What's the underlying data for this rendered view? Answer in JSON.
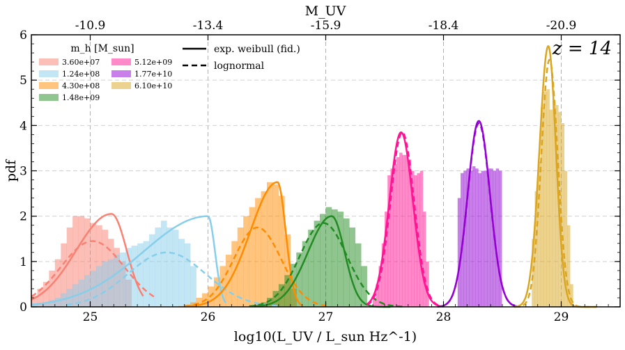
{
  "chart_data": {
    "type": "histogram",
    "title": "",
    "annotation": "z = 14",
    "xlabel": "log10(L_UV / L_sun Hz^-1)",
    "ylabel": "pdf",
    "top_xlabel": "M_UV",
    "xlim": [
      24.5,
      29.5
    ],
    "ylim": [
      0,
      6
    ],
    "xticks": [
      25,
      26,
      27,
      28,
      29
    ],
    "xtick_labels": [
      "25",
      "26",
      "27",
      "28",
      "29"
    ],
    "yticks": [
      0,
      1,
      2,
      3,
      4,
      5,
      6
    ],
    "ytick_labels": [
      "0",
      "1",
      "2",
      "3",
      "4",
      "5",
      "6"
    ],
    "top_xticks": [
      25,
      26,
      27,
      28,
      29
    ],
    "top_xtick_labels": [
      "-10.9",
      "-13.4",
      "-15.9",
      "-18.4",
      "-20.9"
    ],
    "grid": true,
    "legend_title": "m_h [M_sun]",
    "style_legend": [
      {
        "label": "exp. weibull (fid.)",
        "style": "solid"
      },
      {
        "label": "lognormal",
        "style": "dashed"
      }
    ],
    "series": [
      {
        "name": "3.60e+07",
        "color": "#fa8072",
        "bin_width": 0.05,
        "hist_x0": 24.45,
        "hist": [
          0.15,
          0.25,
          0.4,
          0.55,
          0.8,
          1.05,
          1.4,
          1.75,
          2.0,
          2.0,
          1.95,
          1.85,
          1.8,
          1.7,
          1.5,
          1.3,
          1.0,
          0.6
        ],
        "weibull": {
          "mode": 25.18,
          "peak": 2.05,
          "lw": 0.3,
          "rw": 0.13,
          "xmin": 24.5,
          "xmax": 25.45
        },
        "lognormal": {
          "mu": 25.02,
          "peak": 1.45,
          "lw": 0.27,
          "rw": 0.27,
          "xmin": 24.5,
          "xmax": 25.55
        }
      },
      {
        "name": "1.24e+08",
        "color": "#87ceeb",
        "bin_width": 0.05,
        "hist_x0": 24.5,
        "hist": [
          0.05,
          0.05,
          0.1,
          0.15,
          0.2,
          0.3,
          0.4,
          0.5,
          0.6,
          0.7,
          0.8,
          0.9,
          1.0,
          1.05,
          1.15,
          1.2,
          1.3,
          1.35,
          1.4,
          1.45,
          1.6,
          1.75,
          1.9,
          1.75,
          1.7,
          1.5,
          1.4,
          0.9
        ],
        "weibull": {
          "mode": 26.0,
          "peak": 2.0,
          "lw": 0.55,
          "rw": 0.06,
          "xmin": 24.5,
          "xmax": 26.15
        },
        "lognormal": {
          "mu": 25.65,
          "peak": 1.2,
          "lw": 0.33,
          "rw": 0.33,
          "xmin": 24.8,
          "xmax": 26.6
        }
      },
      {
        "name": "4.30e+08",
        "color": "#ff8c00",
        "bin_width": 0.05,
        "hist_x0": 25.75,
        "hist": [
          0.02,
          0.05,
          0.1,
          0.2,
          0.3,
          0.45,
          0.65,
          0.9,
          1.15,
          1.45,
          1.75,
          2.0,
          2.2,
          2.4,
          2.55,
          2.75,
          2.7,
          2.45,
          1.6,
          0.4
        ],
        "weibull": {
          "mode": 26.59,
          "peak": 2.75,
          "lw": 0.23,
          "rw": 0.07,
          "xmin": 25.8,
          "xmax": 26.8
        },
        "lognormal": {
          "mu": 26.42,
          "peak": 1.75,
          "lw": 0.2,
          "rw": 0.2,
          "xmin": 25.8,
          "xmax": 27.0
        }
      },
      {
        "name": "1.48e+09",
        "color": "#228b22",
        "bin_width": 0.05,
        "hist_x0": 26.35,
        "hist": [
          0.02,
          0.05,
          0.1,
          0.2,
          0.35,
          0.5,
          0.7,
          0.95,
          1.2,
          1.45,
          1.7,
          1.9,
          2.05,
          2.2,
          2.15,
          2.1,
          1.95,
          1.75,
          1.4,
          0.9
        ],
        "weibull": {
          "mode": 27.05,
          "peak": 2.0,
          "lw": 0.2,
          "rw": 0.11,
          "xmin": 26.4,
          "xmax": 27.55
        },
        "lognormal": {
          "mu": 26.98,
          "peak": 1.85,
          "lw": 0.2,
          "rw": 0.2,
          "xmin": 26.35,
          "xmax": 27.65
        }
      },
      {
        "name": "5.12e+09",
        "color": "#ff1493",
        "bin_width": 0.025,
        "hist_x0": 27.4,
        "hist": [
          0.2,
          0.5,
          0.9,
          1.4,
          2.1,
          2.9,
          3.05,
          3.15,
          3.3,
          3.4,
          3.35,
          3.35,
          3.25,
          3.0,
          2.9,
          2.95,
          3.0,
          2.1,
          1.0
        ],
        "weibull": {
          "mode": 27.64,
          "peak": 3.85,
          "lw": 0.1,
          "rw": 0.1,
          "xmin": 27.35,
          "xmax": 28.0
        },
        "lognormal": {
          "mu": 27.65,
          "peak": 3.85,
          "lw": 0.1,
          "rw": 0.1,
          "xmin": 27.35,
          "xmax": 28.0
        }
      },
      {
        "name": "1.77e+10",
        "color": "#9400d3",
        "bin_width": 0.025,
        "hist_x0": 28.12,
        "hist": [
          2.4,
          2.95,
          3.0,
          3.05,
          3.0,
          3.1,
          3.05,
          2.95,
          3.0,
          3.0,
          3.05,
          3.05,
          3.0,
          3.05,
          3.0
        ],
        "weibull": {
          "mode": 28.3,
          "peak": 4.1,
          "lw": 0.095,
          "rw": 0.095,
          "xmin": 27.95,
          "xmax": 28.65
        },
        "lognormal": {
          "mu": 28.3,
          "peak": 4.05,
          "lw": 0.095,
          "rw": 0.095,
          "xmin": 27.95,
          "xmax": 28.65
        }
      },
      {
        "name": "6.10e+10",
        "color": "#daa520",
        "bin_width": 0.025,
        "hist_x0": 28.75,
        "hist": [
          1.5,
          2.55,
          3.2,
          4.4,
          4.75,
          4.8,
          4.35,
          4.55,
          4.45,
          4.3,
          4.05,
          3.0,
          1.8,
          0.5
        ],
        "weibull": {
          "mode": 28.89,
          "peak": 5.75,
          "lw": 0.075,
          "rw": 0.065,
          "xmin": 28.6,
          "xmax": 29.3
        },
        "lognormal": {
          "mu": 28.9,
          "peak": 5.45,
          "lw": 0.07,
          "rw": 0.07,
          "xmin": 28.6,
          "xmax": 29.3
        }
      }
    ]
  }
}
